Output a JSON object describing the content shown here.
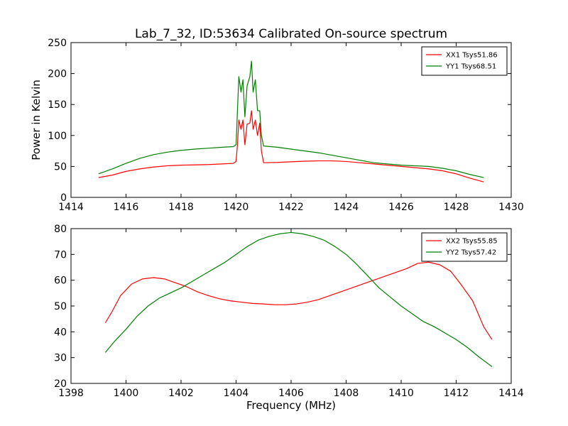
{
  "figure_title": "Lab_7_32, ID:53634 Calibrated On-source spectrum",
  "chart_data": [
    {
      "type": "line",
      "ylabel": "Power in Kelvin",
      "xlabel": "",
      "xlim": [
        1414,
        1430
      ],
      "ylim": [
        0,
        250
      ],
      "xticks": [
        1414,
        1416,
        1418,
        1420,
        1422,
        1424,
        1426,
        1428,
        1430
      ],
      "yticks": [
        0,
        50,
        100,
        150,
        200,
        250
      ],
      "legend_position": "top-right",
      "grid": false,
      "series": [
        {
          "name": "XX1 Tsys51.86",
          "color": "#ff0000",
          "points": [
            [
              1415.0,
              32
            ],
            [
              1415.5,
              36
            ],
            [
              1416.0,
              42
            ],
            [
              1416.5,
              46
            ],
            [
              1417.0,
              49
            ],
            [
              1417.5,
              51
            ],
            [
              1418.0,
              52
            ],
            [
              1418.5,
              52.5
            ],
            [
              1419.0,
              53
            ],
            [
              1419.5,
              54
            ],
            [
              1419.9,
              55
            ],
            [
              1420.0,
              58
            ],
            [
              1420.05,
              85
            ],
            [
              1420.1,
              125
            ],
            [
              1420.18,
              110
            ],
            [
              1420.25,
              125
            ],
            [
              1420.32,
              85
            ],
            [
              1420.4,
              118
            ],
            [
              1420.5,
              120
            ],
            [
              1420.56,
              140
            ],
            [
              1420.62,
              110
            ],
            [
              1420.7,
              125
            ],
            [
              1420.78,
              100
            ],
            [
              1420.86,
              120
            ],
            [
              1420.92,
              75
            ],
            [
              1421.0,
              56
            ],
            [
              1421.5,
              56.5
            ],
            [
              1422.0,
              57.5
            ],
            [
              1422.5,
              58.5
            ],
            [
              1423.0,
              59
            ],
            [
              1423.5,
              59
            ],
            [
              1424.0,
              58
            ],
            [
              1424.5,
              56
            ],
            [
              1425.0,
              54
            ],
            [
              1425.5,
              52
            ],
            [
              1426.0,
              50
            ],
            [
              1426.5,
              48
            ],
            [
              1427.0,
              46
            ],
            [
              1427.5,
              43
            ],
            [
              1428.0,
              38
            ],
            [
              1428.5,
              31
            ],
            [
              1429.0,
              25
            ]
          ]
        },
        {
          "name": "YY1 Tsys68.51",
          "color": "#008000",
          "points": [
            [
              1415.0,
              38
            ],
            [
              1415.5,
              46
            ],
            [
              1416.0,
              55
            ],
            [
              1416.5,
              63
            ],
            [
              1417.0,
              69
            ],
            [
              1417.5,
              73
            ],
            [
              1418.0,
              76
            ],
            [
              1418.5,
              78
            ],
            [
              1419.0,
              79.5
            ],
            [
              1419.5,
              81
            ],
            [
              1419.9,
              82
            ],
            [
              1420.0,
              85
            ],
            [
              1420.05,
              140
            ],
            [
              1420.1,
              195
            ],
            [
              1420.18,
              170
            ],
            [
              1420.25,
              190
            ],
            [
              1420.32,
              130
            ],
            [
              1420.4,
              180
            ],
            [
              1420.5,
              195
            ],
            [
              1420.56,
              220
            ],
            [
              1420.62,
              170
            ],
            [
              1420.7,
              190
            ],
            [
              1420.78,
              140
            ],
            [
              1420.86,
              140
            ],
            [
              1420.92,
              100
            ],
            [
              1421.0,
              83
            ],
            [
              1421.5,
              81
            ],
            [
              1422.0,
              78
            ],
            [
              1422.5,
              75
            ],
            [
              1423.0,
              72
            ],
            [
              1423.5,
              68
            ],
            [
              1424.0,
              64
            ],
            [
              1424.5,
              60
            ],
            [
              1425.0,
              56
            ],
            [
              1425.5,
              54
            ],
            [
              1426.0,
              52
            ],
            [
              1426.5,
              51
            ],
            [
              1427.0,
              50
            ],
            [
              1427.5,
              47
            ],
            [
              1428.0,
              43
            ],
            [
              1428.5,
              37
            ],
            [
              1429.0,
              32
            ]
          ]
        }
      ]
    },
    {
      "type": "line",
      "ylabel": "",
      "xlabel": "Frequency (MHz)",
      "xlim": [
        1398,
        1414
      ],
      "ylim": [
        20,
        80
      ],
      "xticks": [
        1398,
        1400,
        1402,
        1404,
        1406,
        1408,
        1410,
        1412,
        1414
      ],
      "yticks": [
        20,
        30,
        40,
        50,
        60,
        70,
        80
      ],
      "legend_position": "top-right",
      "grid": false,
      "series": [
        {
          "name": "XX2 Tsys55.85",
          "color": "#ff0000",
          "points": [
            [
              1399.25,
              43.5
            ],
            [
              1399.5,
              48
            ],
            [
              1399.8,
              54
            ],
            [
              1400.2,
              58.5
            ],
            [
              1400.6,
              60.5
            ],
            [
              1401.0,
              61
            ],
            [
              1401.4,
              60.5
            ],
            [
              1401.8,
              59
            ],
            [
              1402.2,
              57.5
            ],
            [
              1402.6,
              55.5
            ],
            [
              1403.0,
              54
            ],
            [
              1403.4,
              52.8
            ],
            [
              1403.8,
              52
            ],
            [
              1404.2,
              51.5
            ],
            [
              1404.6,
              51
            ],
            [
              1405.0,
              50.8
            ],
            [
              1405.4,
              50.5
            ],
            [
              1405.8,
              50.5
            ],
            [
              1406.2,
              50.8
            ],
            [
              1406.6,
              51.5
            ],
            [
              1407.0,
              52.5
            ],
            [
              1407.4,
              54
            ],
            [
              1407.8,
              55.5
            ],
            [
              1408.2,
              57
            ],
            [
              1408.6,
              58.5
            ],
            [
              1409.0,
              60
            ],
            [
              1409.4,
              61.5
            ],
            [
              1409.8,
              63
            ],
            [
              1410.2,
              64.5
            ],
            [
              1410.6,
              66.5
            ],
            [
              1411.0,
              67
            ],
            [
              1411.4,
              66
            ],
            [
              1411.8,
              63.5
            ],
            [
              1412.2,
              58
            ],
            [
              1412.6,
              52
            ],
            [
              1413.0,
              42
            ],
            [
              1413.3,
              37
            ]
          ]
        },
        {
          "name": "YY2 Tsys57.42",
          "color": "#008000",
          "points": [
            [
              1399.25,
              32
            ],
            [
              1399.6,
              36.5
            ],
            [
              1400.0,
              41
            ],
            [
              1400.4,
              46
            ],
            [
              1400.8,
              50
            ],
            [
              1401.2,
              53
            ],
            [
              1401.6,
              55
            ],
            [
              1402.0,
              57
            ],
            [
              1402.4,
              59.5
            ],
            [
              1402.8,
              62
            ],
            [
              1403.2,
              64.5
            ],
            [
              1403.6,
              67
            ],
            [
              1404.0,
              70
            ],
            [
              1404.4,
              73
            ],
            [
              1404.8,
              75.5
            ],
            [
              1405.2,
              77
            ],
            [
              1405.6,
              78
            ],
            [
              1406.0,
              78.5
            ],
            [
              1406.4,
              78
            ],
            [
              1406.8,
              77
            ],
            [
              1407.2,
              75.5
            ],
            [
              1407.6,
              73
            ],
            [
              1408.0,
              70
            ],
            [
              1408.4,
              66
            ],
            [
              1408.8,
              61.5
            ],
            [
              1409.2,
              57
            ],
            [
              1409.6,
              53.5
            ],
            [
              1410.0,
              50
            ],
            [
              1410.4,
              47
            ],
            [
              1410.8,
              44
            ],
            [
              1411.2,
              42
            ],
            [
              1411.6,
              39.5
            ],
            [
              1412.0,
              37
            ],
            [
              1412.4,
              34
            ],
            [
              1412.8,
              30.5
            ],
            [
              1413.3,
              26.5
            ]
          ]
        }
      ]
    }
  ]
}
